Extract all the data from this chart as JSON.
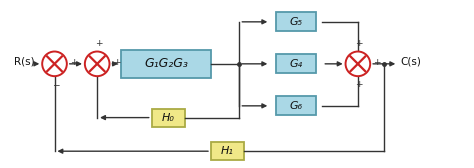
{
  "bg_color": "#ffffff",
  "sj_face": "#ffffff",
  "sj_edge": "#cc2222",
  "x_color": "#cc2222",
  "fwd_face": "#aad8e6",
  "fwd_edge": "#5599aa",
  "fb_face": "#f0e888",
  "fb_edge": "#aaaa44",
  "line_color": "#333333",
  "text_color": "#111111",
  "label_Rs": "R(s)",
  "label_Cs": "C(s)",
  "label_G123": "G₁G₂G₃",
  "label_G4": "G₄",
  "label_G5": "G₅",
  "label_G6": "G₆",
  "label_H0": "H₀",
  "label_H1": "H₁",
  "figsize": [
    4.74,
    1.68
  ],
  "dpi": 100
}
